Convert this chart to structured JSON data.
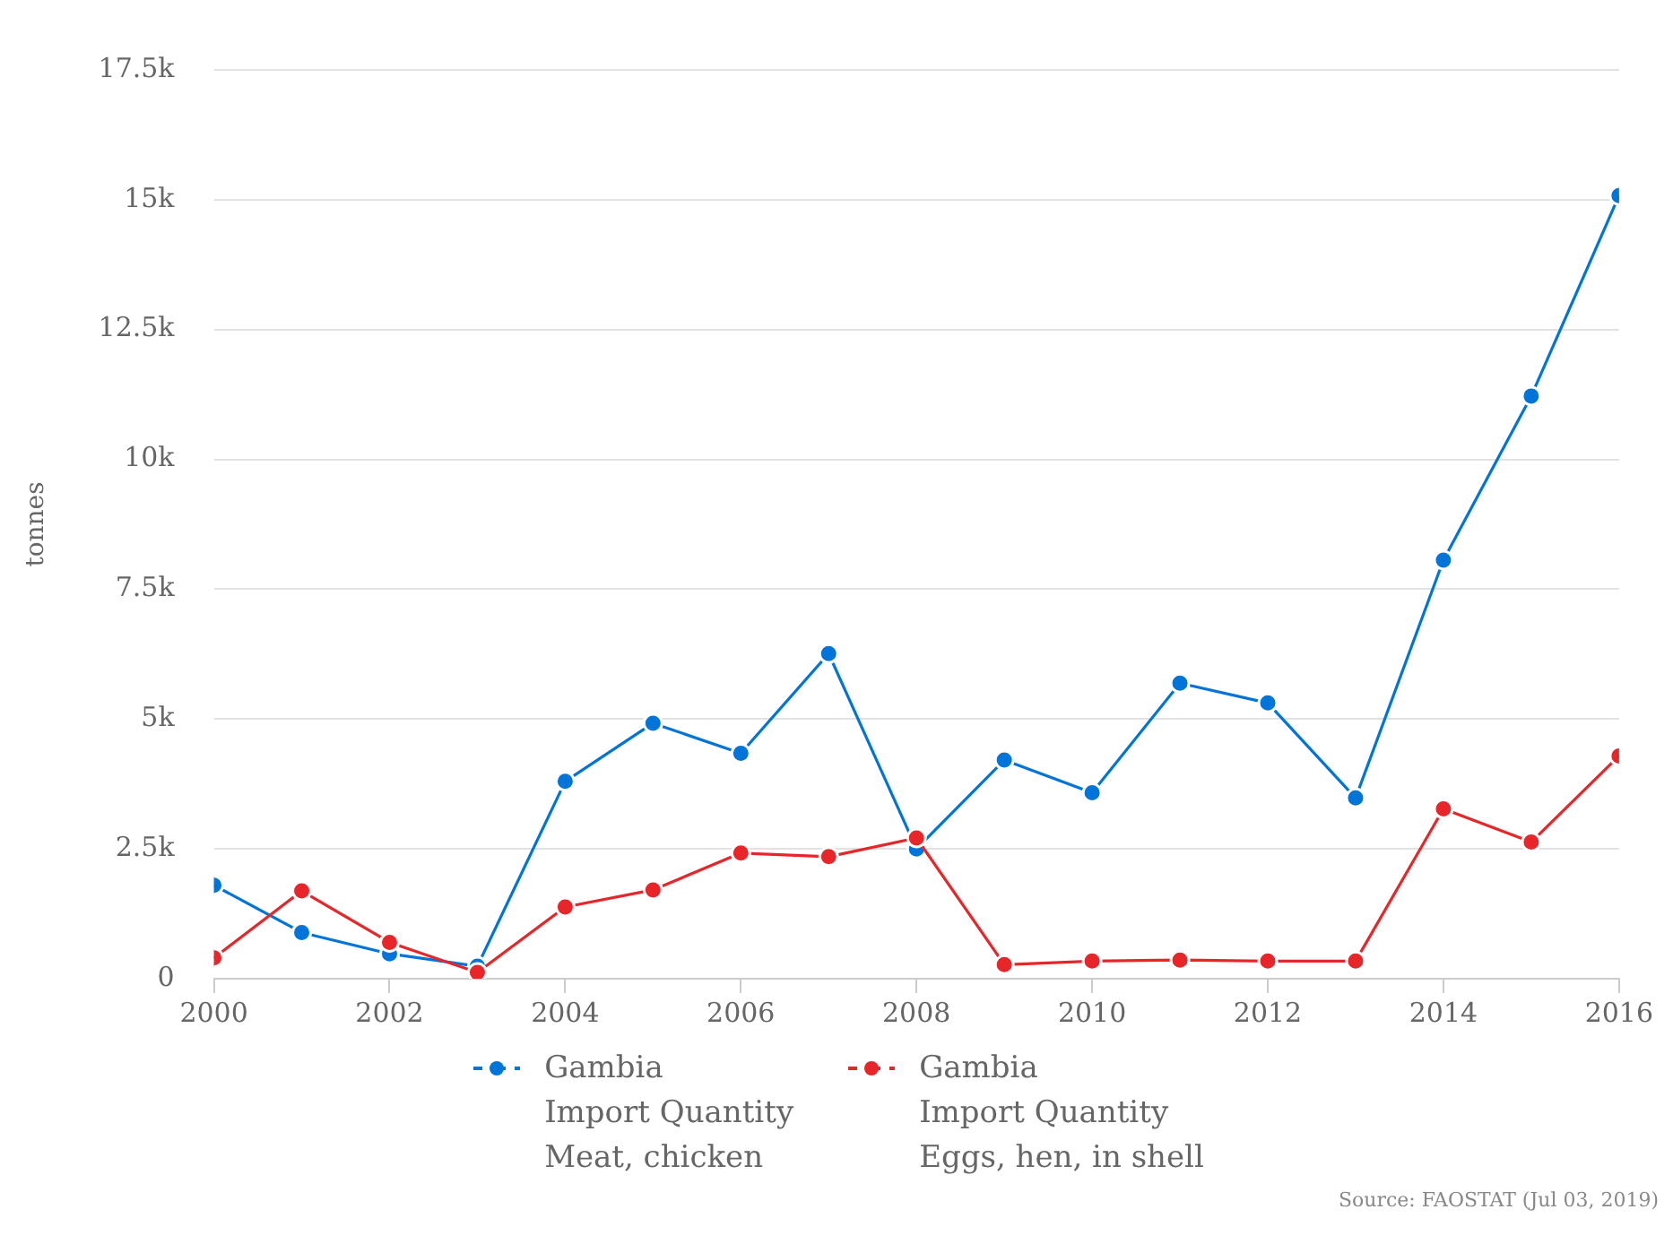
{
  "chart_data": {
    "type": "line",
    "ylabel": "tonnes",
    "x": [
      2000,
      2001,
      2002,
      2003,
      2004,
      2005,
      2006,
      2007,
      2008,
      2009,
      2010,
      2011,
      2012,
      2013,
      2014,
      2015,
      2016
    ],
    "series": [
      {
        "name": "Gambia\nImport Quantity\nMeat, chicken",
        "color": "#0074d9",
        "values": [
          1800,
          890,
          480,
          240,
          3800,
          4920,
          4340,
          6260,
          2500,
          4210,
          3580,
          5690,
          5310,
          3480,
          8060,
          11220,
          15080
        ]
      },
      {
        "name": "Gambia\nImport Quantity\nEggs, hen, in shell",
        "color": "#e8262a",
        "values": [
          400,
          1690,
          700,
          120,
          1380,
          1710,
          2420,
          2350,
          2710,
          270,
          340,
          360,
          340,
          340,
          3270,
          2630,
          4290
        ]
      }
    ],
    "xlim": [
      2000,
      2016
    ],
    "xticks": [
      2000,
      2002,
      2004,
      2006,
      2008,
      2010,
      2012,
      2014,
      2016
    ],
    "ylim": [
      0,
      17500
    ],
    "yticks": [
      0,
      {
        "value": 2500,
        "label": "2.5k"
      },
      {
        "value": 5000,
        "label": "5k"
      },
      {
        "value": 7500,
        "label": "7.5k"
      },
      {
        "value": 10000,
        "label": "10k"
      },
      {
        "value": 12500,
        "label": "12.5k"
      },
      {
        "value": 15000,
        "label": "15k"
      },
      {
        "value": 17500,
        "label": "17.5k"
      }
    ],
    "grid": "y",
    "legend": "bottom",
    "marker": "circle",
    "line_style": "solid",
    "annotations": [
      "Source: FAOSTAT (Jul 03, 2019)"
    ]
  }
}
